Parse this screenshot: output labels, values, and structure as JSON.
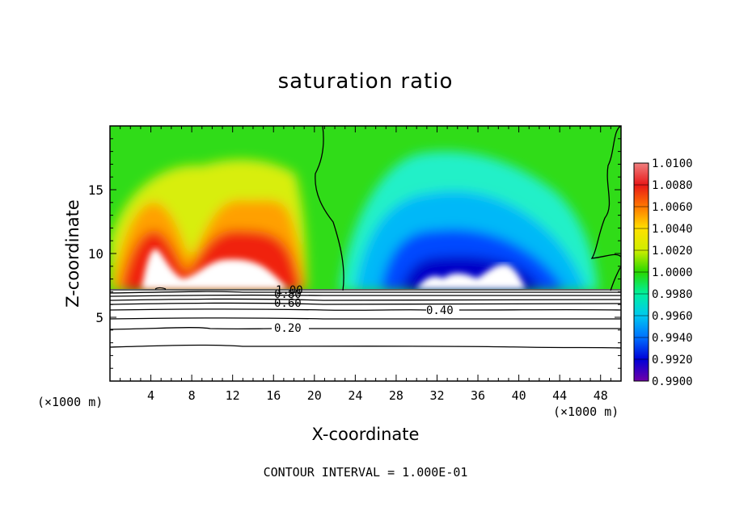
{
  "chart_data": {
    "type": "heatmap",
    "title": "saturation ratio",
    "xlabel": "X-coordinate",
    "ylabel": "Z-coordinate",
    "x_unit_left": "(×1000 m)",
    "x_unit_right": "(×1000 m)",
    "xlim": [
      0,
      50
    ],
    "ylim": [
      0,
      20
    ],
    "x_ticks": [
      4,
      8,
      12,
      16,
      20,
      24,
      28,
      32,
      36,
      40,
      44,
      48
    ],
    "y_ticks": [
      5,
      10,
      15
    ],
    "colorbar": {
      "range": [
        0.99,
        1.01
      ],
      "labels": [
        "1.0100",
        "1.0080",
        "1.0060",
        "1.0040",
        "1.0020",
        "1.0000",
        "0.9980",
        "0.9960",
        "0.9940",
        "0.9920",
        "0.9900"
      ],
      "colors": [
        "#f08080",
        "#e81818",
        "#ff7800",
        "#ffe000",
        "#cfee00",
        "#28d800",
        "#00f0a0",
        "#00c8f0",
        "#0070ff",
        "#0000d8",
        "#7000a8"
      ]
    },
    "contour_labels": [
      "1.00",
      "0.80",
      "0.60",
      "0.40",
      "0.20"
    ],
    "contour_interval_text": "CONTOUR INTERVAL = 1.000E-01"
  }
}
